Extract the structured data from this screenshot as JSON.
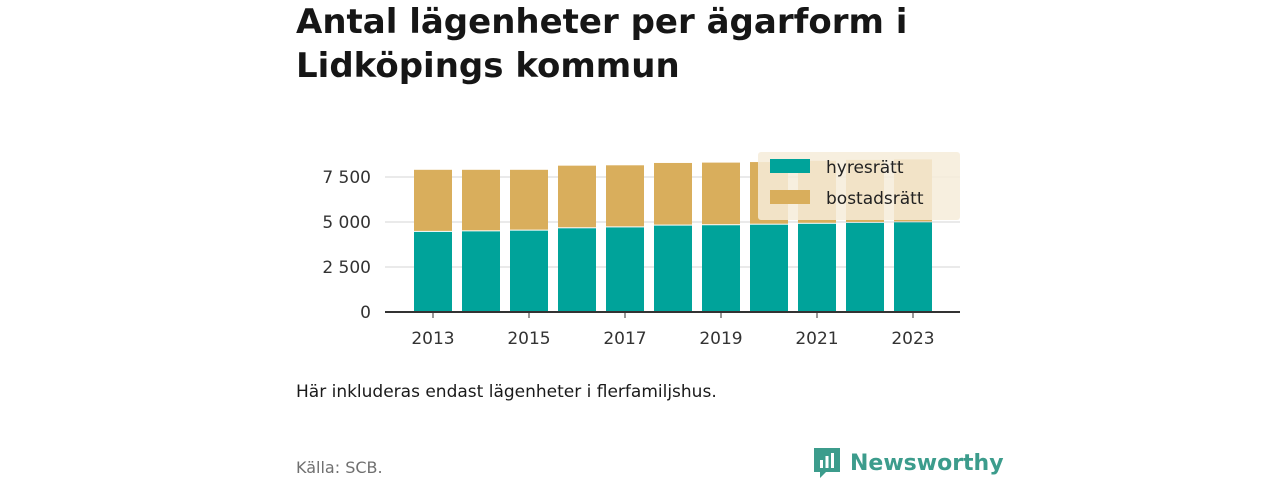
{
  "title": "Antal lägenheter per ägarform i Lidköpings kommun",
  "note": "Här inkluderas endast lägenheter i flerfamiljshus.",
  "source": "Källa: SCB.",
  "brand": "Newsworthy",
  "colors": {
    "hyresratt": "#00a39a",
    "bostadsratt": "#d9ae5c",
    "legend_bg": "#f6ecd9",
    "brand": "#3c9c8c"
  },
  "chart_data": {
    "type": "bar",
    "stacked": true,
    "x": [
      2013,
      2014,
      2015,
      2016,
      2017,
      2018,
      2019,
      2020,
      2021,
      2022,
      2023
    ],
    "x_tick_labels": [
      "2013",
      "2015",
      "2017",
      "2019",
      "2021",
      "2023"
    ],
    "y_tick_labels": [
      "0",
      "2 500",
      "5 000",
      "7 500"
    ],
    "ylim": [
      0,
      8600
    ],
    "grid": true,
    "legend_position": "top-right",
    "series": [
      {
        "name": "hyresrätt",
        "values": [
          4450,
          4480,
          4520,
          4650,
          4700,
          4800,
          4820,
          4850,
          4900,
          4950,
          4980
        ]
      },
      {
        "name": "bostadsrätt",
        "values": [
          3450,
          3420,
          3380,
          3480,
          3450,
          3480,
          3480,
          3480,
          3500,
          3500,
          3500
        ]
      }
    ]
  }
}
